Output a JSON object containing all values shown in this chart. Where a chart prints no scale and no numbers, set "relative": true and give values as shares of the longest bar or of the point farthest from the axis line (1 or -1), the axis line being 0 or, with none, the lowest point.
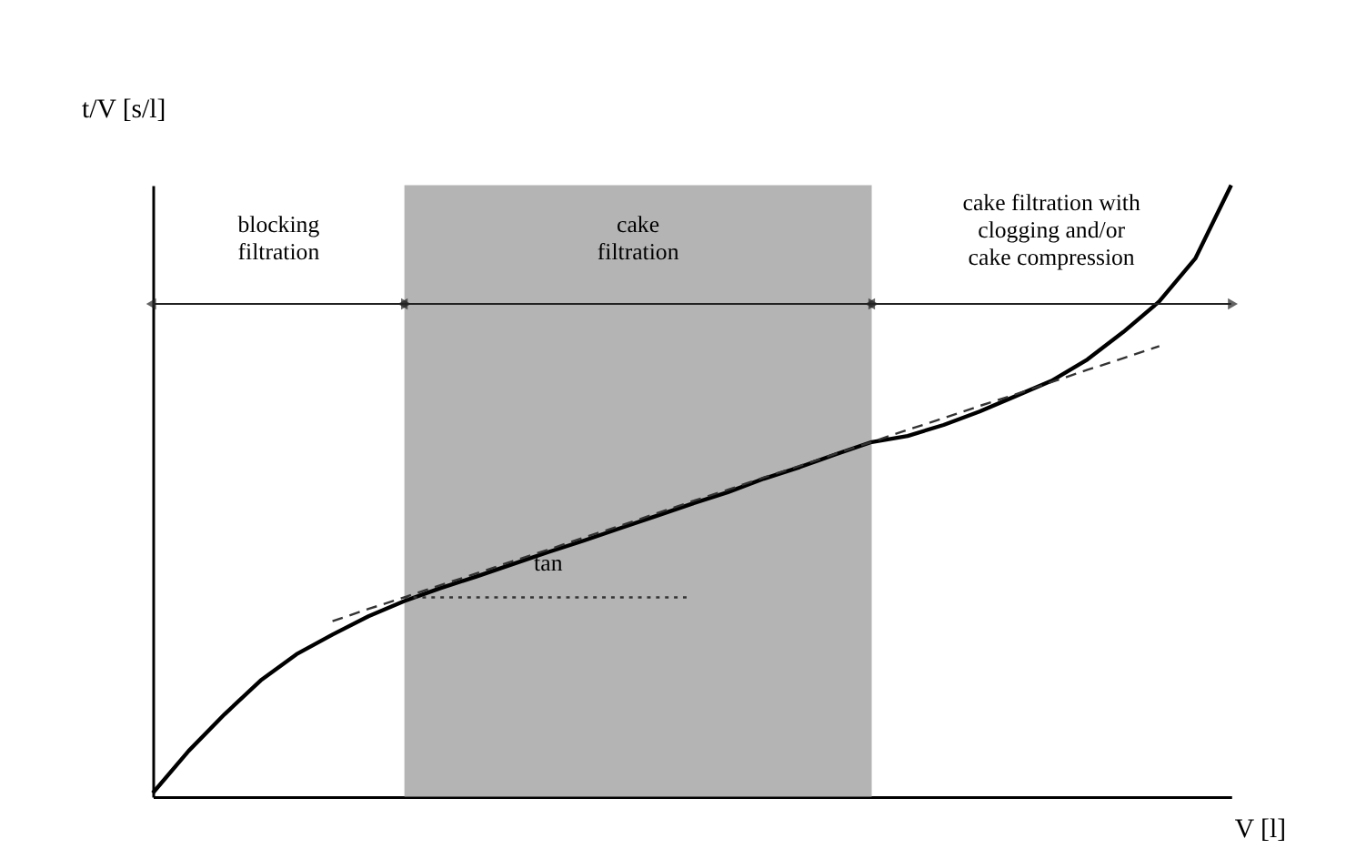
{
  "chart_data": {
    "type": "line",
    "relative": true,
    "xlabel": "V [l]",
    "ylabel": "t/V [s/l]",
    "tick_labels": false,
    "grid": false,
    "categories": [
      null,
      null,
      null,
      null,
      null,
      null,
      null,
      null,
      null,
      null,
      null,
      null,
      null,
      null,
      null,
      null,
      null,
      null,
      null,
      null,
      null,
      null,
      null,
      null,
      null,
      null,
      null,
      null,
      null,
      null,
      null
    ],
    "series": [
      {
        "type": "area",
        "color": "#b4b4b4",
        "values": [
          null,
          null,
          null,
          null,
          null,
          null,
          null,
          1,
          1,
          1,
          1,
          1,
          1,
          1,
          1,
          1,
          1,
          1,
          1,
          1,
          1,
          null,
          null,
          null,
          null,
          null,
          null,
          null,
          null,
          null,
          null
        ]
      },
      {
        "color": "#000000",
        "line_style": "solid",
        "values": [
          0.006,
          0.075,
          0.135,
          0.19,
          0.233,
          0.265,
          0.295,
          0.32,
          0.341,
          0.36,
          0.38,
          0.4,
          0.419,
          0.439,
          0.459,
          0.479,
          0.498,
          0.52,
          0.539,
          0.56,
          0.58,
          0.59,
          0.608,
          0.63,
          0.655,
          0.68,
          0.715,
          0.76,
          0.81,
          0.88,
          1
        ]
      },
      {
        "color": "#333333",
        "line_style": "dashed",
        "values": [
          null,
          null,
          null,
          null,
          null,
          0.287,
          0.307,
          0.326,
          0.346,
          0.365,
          0.385,
          0.404,
          0.424,
          0.443,
          0.463,
          0.483,
          0.502,
          0.522,
          0.541,
          0.561,
          0.58,
          0.6,
          0.619,
          0.639,
          0.658,
          0.678,
          0.698,
          0.717,
          0.737,
          null,
          null
        ]
      },
      {
        "color": "#333333",
        "line_style": "dotted",
        "values": [
          null,
          null,
          null,
          null,
          null,
          null,
          null,
          0.326,
          0.326,
          0.326,
          0.326,
          0.326,
          0.326,
          0.326,
          0.326,
          0.326,
          null,
          null,
          null,
          null,
          null,
          null,
          null,
          null,
          null,
          null,
          null,
          null,
          null,
          null,
          null
        ]
      }
    ],
    "annotations": [
      "blocking\nfiltration",
      "cake\nfiltration",
      "cake filtration with\nclogging and/or\ncake compression",
      "tan"
    ]
  }
}
